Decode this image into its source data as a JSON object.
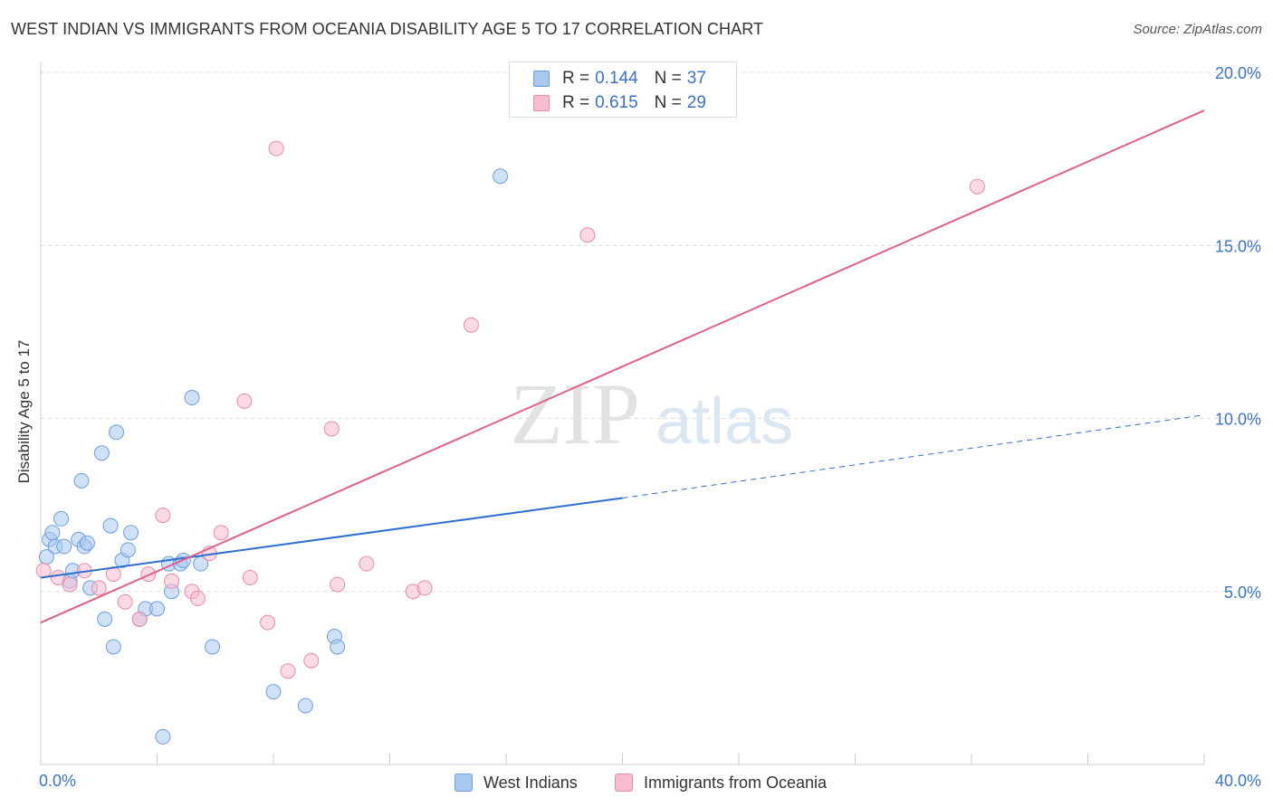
{
  "title": "WEST INDIAN VS IMMIGRANTS FROM OCEANIA DISABILITY AGE 5 TO 17 CORRELATION CHART",
  "source": "Source: ZipAtlas.com",
  "legend_top": [
    {
      "r_label": "R =",
      "r_value": "0.144",
      "n_label": "N =",
      "n_value": "37"
    },
    {
      "r_label": "R =",
      "r_value": "0.615",
      "n_label": "N =",
      "n_value": "29"
    }
  ],
  "legend_bottom": [
    "West Indians",
    "Immigrants from Oceania"
  ],
  "colors": {
    "blue_fill": "#a9c8f0",
    "blue_stroke": "#6a9ee0",
    "blue_line": "#2f6fd0",
    "pink_fill": "#f7bccd",
    "pink_stroke": "#ec8aa6",
    "pink_line": "#e0608a",
    "tick_text": "#3b73c8",
    "grid": "#d9d9d9"
  },
  "watermark": {
    "zip": "ZIP",
    "atlas": "atlas"
  },
  "chart_data": {
    "type": "scatter",
    "title": "WEST INDIAN VS IMMIGRANTS FROM OCEANIA DISABILITY AGE 5 TO 17 CORRELATION CHART",
    "xlabel": "",
    "ylabel": "Disability Age 5 to 17",
    "xlim": [
      0,
      40
    ],
    "ylim": [
      0,
      20
    ],
    "x_tick_labels": [
      "0.0%",
      "40.0%"
    ],
    "y_ticks": [
      5,
      10,
      15,
      20
    ],
    "y_tick_labels": [
      "5.0%",
      "10.0%",
      "15.0%",
      "20.0%"
    ],
    "grid": true,
    "legend_position": "top-center",
    "series": [
      {
        "name": "West Indians",
        "r": 0.144,
        "n": 37,
        "points": [
          [
            0.2,
            6.0
          ],
          [
            0.3,
            6.5
          ],
          [
            0.4,
            6.7
          ],
          [
            0.5,
            6.3
          ],
          [
            0.7,
            7.1
          ],
          [
            0.8,
            6.3
          ],
          [
            1.0,
            5.3
          ],
          [
            1.1,
            5.6
          ],
          [
            1.3,
            6.5
          ],
          [
            1.5,
            6.3
          ],
          [
            1.6,
            6.4
          ],
          [
            1.4,
            8.2
          ],
          [
            1.7,
            5.1
          ],
          [
            2.1,
            9.0
          ],
          [
            2.2,
            4.2
          ],
          [
            2.4,
            6.9
          ],
          [
            2.5,
            3.4
          ],
          [
            2.6,
            9.6
          ],
          [
            2.8,
            5.9
          ],
          [
            3.0,
            6.2
          ],
          [
            3.1,
            6.7
          ],
          [
            3.4,
            4.2
          ],
          [
            3.6,
            4.5
          ],
          [
            4.0,
            4.5
          ],
          [
            4.2,
            0.8
          ],
          [
            4.4,
            5.8
          ],
          [
            4.5,
            5.0
          ],
          [
            4.8,
            5.8
          ],
          [
            5.2,
            10.6
          ],
          [
            5.5,
            5.8
          ],
          [
            5.9,
            3.4
          ],
          [
            8.0,
            2.1
          ],
          [
            9.1,
            1.7
          ],
          [
            10.1,
            3.7
          ],
          [
            10.2,
            3.4
          ],
          [
            15.8,
            17.0
          ],
          [
            4.9,
            5.9
          ]
        ],
        "trend": {
          "x0": 0,
          "y0": 5.4,
          "x1": 20,
          "y1": 7.7,
          "dashed_to_x": 40,
          "dashed_to_y": 10.1
        }
      },
      {
        "name": "Immigrants from Oceania",
        "r": 0.615,
        "n": 29,
        "points": [
          [
            0.1,
            5.6
          ],
          [
            0.6,
            5.4
          ],
          [
            1.0,
            5.2
          ],
          [
            1.5,
            5.6
          ],
          [
            2.0,
            5.1
          ],
          [
            2.5,
            5.5
          ],
          [
            2.9,
            4.7
          ],
          [
            3.4,
            4.2
          ],
          [
            3.7,
            5.5
          ],
          [
            4.2,
            7.2
          ],
          [
            4.5,
            5.3
          ],
          [
            5.2,
            5.0
          ],
          [
            5.4,
            4.8
          ],
          [
            5.8,
            6.1
          ],
          [
            6.2,
            6.7
          ],
          [
            7.0,
            10.5
          ],
          [
            7.2,
            5.4
          ],
          [
            7.8,
            4.1
          ],
          [
            8.1,
            17.8
          ],
          [
            8.5,
            2.7
          ],
          [
            9.3,
            3.0
          ],
          [
            10.0,
            9.7
          ],
          [
            10.2,
            5.2
          ],
          [
            11.2,
            5.8
          ],
          [
            12.8,
            5.0
          ],
          [
            13.2,
            5.1
          ],
          [
            14.8,
            12.7
          ],
          [
            18.8,
            15.3
          ],
          [
            32.2,
            16.7
          ]
        ],
        "trend": {
          "x0": 0,
          "y0": 4.1,
          "x1": 40,
          "y1": 18.9
        }
      }
    ]
  }
}
